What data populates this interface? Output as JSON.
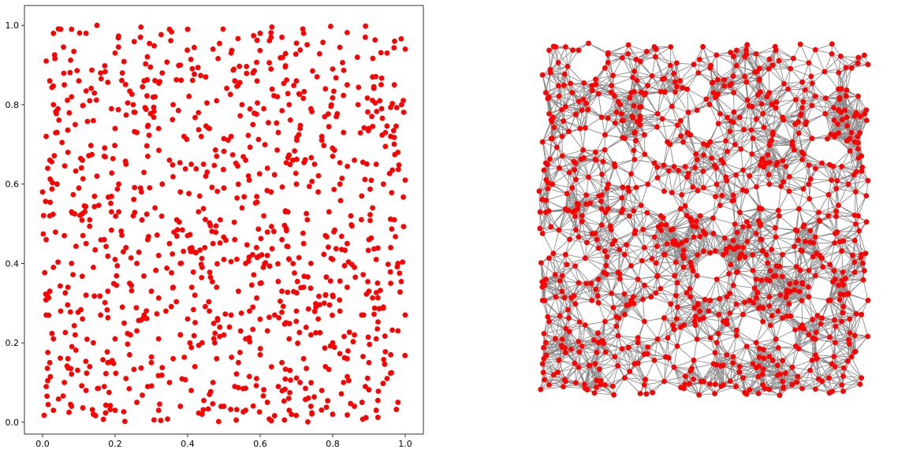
{
  "chart_data": [
    {
      "type": "scatter",
      "title": "",
      "xlabel": "",
      "ylabel": "",
      "xlim": [
        -0.05,
        1.05
      ],
      "ylim": [
        -0.03,
        1.05
      ],
      "xticks": [
        "0.0",
        "0.2",
        "0.4",
        "0.6",
        "0.8",
        "1.0"
      ],
      "yticks": [
        "0.0",
        "0.2",
        "0.4",
        "0.6",
        "0.8",
        "1.0"
      ],
      "grid": false,
      "legend": "none",
      "marker_color": "#ff0000",
      "point_count_estimate": 1000,
      "distribution": "uniform random on unit square",
      "series": [
        {
          "points": [
            [
              0.01,
              0.91
            ],
            [
              0.03,
              0.98
            ],
            [
              0.05,
              0.99
            ],
            [
              0.08,
              0.99
            ],
            [
              0.12,
              0.98
            ],
            [
              0.15,
              1.0
            ],
            [
              0.2,
              0.93
            ],
            [
              0.27,
              0.97
            ],
            [
              0.35,
              0.99
            ],
            [
              0.4,
              0.99
            ],
            [
              0.47,
              0.94
            ],
            [
              0.52,
              0.93
            ],
            [
              0.6,
              0.98
            ],
            [
              0.66,
              0.97
            ],
            [
              0.72,
              0.98
            ],
            [
              0.8,
              0.89
            ],
            [
              0.89,
              0.97
            ],
            [
              0.95,
              0.93
            ],
            [
              1.0,
              0.94
            ],
            [
              0.02,
              0.86
            ],
            [
              0.06,
              0.85
            ],
            [
              0.1,
              0.86
            ],
            [
              0.16,
              0.88
            ],
            [
              0.22,
              0.88
            ],
            [
              0.28,
              0.86
            ],
            [
              0.33,
              0.88
            ],
            [
              0.38,
              0.9
            ],
            [
              0.45,
              0.87
            ],
            [
              0.53,
              0.86
            ],
            [
              0.58,
              0.88
            ],
            [
              0.63,
              0.89
            ],
            [
              0.7,
              0.86
            ],
            [
              0.78,
              0.84
            ],
            [
              0.84,
              0.85
            ],
            [
              0.91,
              0.87
            ],
            [
              0.97,
              0.85
            ],
            [
              0.03,
              0.8
            ],
            [
              0.08,
              0.82
            ],
            [
              0.13,
              0.81
            ],
            [
              0.19,
              0.79
            ],
            [
              0.25,
              0.8
            ],
            [
              0.31,
              0.82
            ],
            [
              0.36,
              0.8
            ],
            [
              0.43,
              0.78
            ],
            [
              0.48,
              0.81
            ],
            [
              0.55,
              0.8
            ],
            [
              0.61,
              0.79
            ],
            [
              0.68,
              0.8
            ],
            [
              0.74,
              0.79
            ],
            [
              0.81,
              0.77
            ],
            [
              0.87,
              0.8
            ],
            [
              0.93,
              0.81
            ],
            [
              0.99,
              0.8
            ],
            [
              0.01,
              0.72
            ],
            [
              0.04,
              0.73
            ],
            [
              0.09,
              0.75
            ],
            [
              0.14,
              0.76
            ],
            [
              0.2,
              0.74
            ],
            [
              0.26,
              0.73
            ],
            [
              0.32,
              0.74
            ],
            [
              0.39,
              0.72
            ],
            [
              0.46,
              0.74
            ],
            [
              0.52,
              0.72
            ],
            [
              0.58,
              0.75
            ],
            [
              0.65,
              0.73
            ],
            [
              0.71,
              0.74
            ],
            [
              0.77,
              0.72
            ],
            [
              0.83,
              0.73
            ],
            [
              0.9,
              0.74
            ],
            [
              0.96,
              0.72
            ],
            [
              0.02,
              0.66
            ],
            [
              0.07,
              0.68
            ],
            [
              0.11,
              0.66
            ],
            [
              0.17,
              0.67
            ],
            [
              0.23,
              0.65
            ],
            [
              0.29,
              0.67
            ],
            [
              0.35,
              0.66
            ],
            [
              0.41,
              0.65
            ],
            [
              0.48,
              0.67
            ],
            [
              0.56,
              0.66
            ],
            [
              0.62,
              0.64
            ],
            [
              0.69,
              0.66
            ],
            [
              0.75,
              0.65
            ],
            [
              0.8,
              0.67
            ],
            [
              0.86,
              0.66
            ],
            [
              0.92,
              0.65
            ],
            [
              0.98,
              0.68
            ],
            [
              0.0,
              0.58
            ],
            [
              0.04,
              0.6
            ],
            [
              0.1,
              0.59
            ],
            [
              0.15,
              0.62
            ],
            [
              0.21,
              0.6
            ],
            [
              0.27,
              0.59
            ],
            [
              0.33,
              0.6
            ],
            [
              0.38,
              0.58
            ],
            [
              0.45,
              0.62
            ],
            [
              0.5,
              0.59
            ],
            [
              0.57,
              0.61
            ],
            [
              0.63,
              0.58
            ],
            [
              0.7,
              0.6
            ],
            [
              0.76,
              0.58
            ],
            [
              0.82,
              0.6
            ],
            [
              0.88,
              0.57
            ],
            [
              0.94,
              0.6
            ],
            [
              1.0,
              0.61
            ],
            [
              0.02,
              0.52
            ],
            [
              0.08,
              0.53
            ],
            [
              0.13,
              0.51
            ],
            [
              0.19,
              0.53
            ],
            [
              0.25,
              0.52
            ],
            [
              0.31,
              0.54
            ],
            [
              0.37,
              0.51
            ],
            [
              0.43,
              0.53
            ],
            [
              0.49,
              0.51
            ],
            [
              0.55,
              0.54
            ],
            [
              0.61,
              0.52
            ],
            [
              0.67,
              0.53
            ],
            [
              0.73,
              0.51
            ],
            [
              0.79,
              0.53
            ],
            [
              0.85,
              0.52
            ],
            [
              0.91,
              0.54
            ],
            [
              0.97,
              0.51
            ],
            [
              0.01,
              0.46
            ],
            [
              0.06,
              0.47
            ],
            [
              0.12,
              0.45
            ],
            [
              0.17,
              0.46
            ],
            [
              0.23,
              0.44
            ],
            [
              0.29,
              0.46
            ],
            [
              0.35,
              0.45
            ],
            [
              0.4,
              0.47
            ],
            [
              0.47,
              0.45
            ],
            [
              0.53,
              0.46
            ],
            [
              0.59,
              0.44
            ],
            [
              0.66,
              0.46
            ],
            [
              0.72,
              0.45
            ],
            [
              0.78,
              0.47
            ],
            [
              0.84,
              0.45
            ],
            [
              0.9,
              0.46
            ],
            [
              0.96,
              0.44
            ],
            [
              0.03,
              0.39
            ],
            [
              0.08,
              0.4
            ],
            [
              0.14,
              0.39
            ],
            [
              0.2,
              0.41
            ],
            [
              0.26,
              0.4
            ],
            [
              0.32,
              0.42
            ],
            [
              0.38,
              0.4
            ],
            [
              0.44,
              0.39
            ],
            [
              0.5,
              0.41
            ],
            [
              0.56,
              0.4
            ],
            [
              0.62,
              0.42
            ],
            [
              0.68,
              0.41
            ],
            [
              0.74,
              0.4
            ],
            [
              0.8,
              0.41
            ],
            [
              0.86,
              0.39
            ],
            [
              0.92,
              0.41
            ],
            [
              0.98,
              0.4
            ],
            [
              0.02,
              0.33
            ],
            [
              0.07,
              0.34
            ],
            [
              0.12,
              0.32
            ],
            [
              0.18,
              0.33
            ],
            [
              0.24,
              0.35
            ],
            [
              0.3,
              0.33
            ],
            [
              0.36,
              0.34
            ],
            [
              0.42,
              0.32
            ],
            [
              0.48,
              0.34
            ],
            [
              0.54,
              0.33
            ],
            [
              0.6,
              0.35
            ],
            [
              0.66,
              0.33
            ],
            [
              0.72,
              0.34
            ],
            [
              0.78,
              0.32
            ],
            [
              0.84,
              0.34
            ],
            [
              0.9,
              0.33
            ],
            [
              0.96,
              0.35
            ],
            [
              0.01,
              0.27
            ],
            [
              0.05,
              0.28
            ],
            [
              0.11,
              0.26
            ],
            [
              0.16,
              0.27
            ],
            [
              0.22,
              0.29
            ],
            [
              0.28,
              0.27
            ],
            [
              0.34,
              0.28
            ],
            [
              0.4,
              0.26
            ],
            [
              0.46,
              0.28
            ],
            [
              0.52,
              0.27
            ],
            [
              0.58,
              0.29
            ],
            [
              0.64,
              0.27
            ],
            [
              0.7,
              0.28
            ],
            [
              0.76,
              0.26
            ],
            [
              0.82,
              0.28
            ],
            [
              0.88,
              0.27
            ],
            [
              0.94,
              0.29
            ],
            [
              1.0,
              0.27
            ],
            [
              0.03,
              0.21
            ],
            [
              0.09,
              0.22
            ],
            [
              0.14,
              0.2
            ],
            [
              0.2,
              0.21
            ],
            [
              0.26,
              0.23
            ],
            [
              0.32,
              0.21
            ],
            [
              0.38,
              0.22
            ],
            [
              0.44,
              0.2
            ],
            [
              0.5,
              0.22
            ],
            [
              0.56,
              0.21
            ],
            [
              0.62,
              0.23
            ],
            [
              0.68,
              0.21
            ],
            [
              0.74,
              0.22
            ],
            [
              0.8,
              0.2
            ],
            [
              0.86,
              0.22
            ],
            [
              0.92,
              0.21
            ],
            [
              0.98,
              0.23
            ],
            [
              0.02,
              0.15
            ],
            [
              0.07,
              0.16
            ],
            [
              0.13,
              0.14
            ],
            [
              0.18,
              0.15
            ],
            [
              0.24,
              0.17
            ],
            [
              0.3,
              0.15
            ],
            [
              0.36,
              0.16
            ],
            [
              0.42,
              0.14
            ],
            [
              0.48,
              0.16
            ],
            [
              0.54,
              0.15
            ],
            [
              0.6,
              0.17
            ],
            [
              0.66,
              0.15
            ],
            [
              0.72,
              0.16
            ],
            [
              0.78,
              0.14
            ],
            [
              0.84,
              0.16
            ],
            [
              0.9,
              0.15
            ],
            [
              0.96,
              0.17
            ],
            [
              0.01,
              0.09
            ],
            [
              0.06,
              0.1
            ],
            [
              0.12,
              0.08
            ],
            [
              0.17,
              0.09
            ],
            [
              0.23,
              0.11
            ],
            [
              0.29,
              0.09
            ],
            [
              0.35,
              0.1
            ],
            [
              0.41,
              0.08
            ],
            [
              0.47,
              0.1
            ],
            [
              0.53,
              0.09
            ],
            [
              0.59,
              0.11
            ],
            [
              0.65,
              0.09
            ],
            [
              0.71,
              0.1
            ],
            [
              0.77,
              0.08
            ],
            [
              0.83,
              0.1
            ],
            [
              0.89,
              0.09
            ],
            [
              0.95,
              0.11
            ],
            [
              0.03,
              0.03
            ],
            [
              0.08,
              0.04
            ],
            [
              0.14,
              0.02
            ],
            [
              0.2,
              0.03
            ],
            [
              0.26,
              0.05
            ],
            [
              0.32,
              0.03
            ],
            [
              0.38,
              0.04
            ],
            [
              0.44,
              0.02
            ],
            [
              0.5,
              0.04
            ],
            [
              0.56,
              0.03
            ],
            [
              0.62,
              0.05
            ],
            [
              0.68,
              0.03
            ],
            [
              0.74,
              0.04
            ],
            [
              0.8,
              0.02
            ],
            [
              0.86,
              0.04
            ],
            [
              0.92,
              0.03
            ],
            [
              0.98,
              0.05
            ]
          ]
        }
      ]
    },
    {
      "type": "network",
      "title": "",
      "axes": "hidden",
      "node_color": "#ff0000",
      "edge_color": "#808080",
      "node_count_estimate": 1000,
      "layout": "geometric graph on the same points as the scatter",
      "edge_rule": "nodes within a fixed distance are connected"
    }
  ]
}
